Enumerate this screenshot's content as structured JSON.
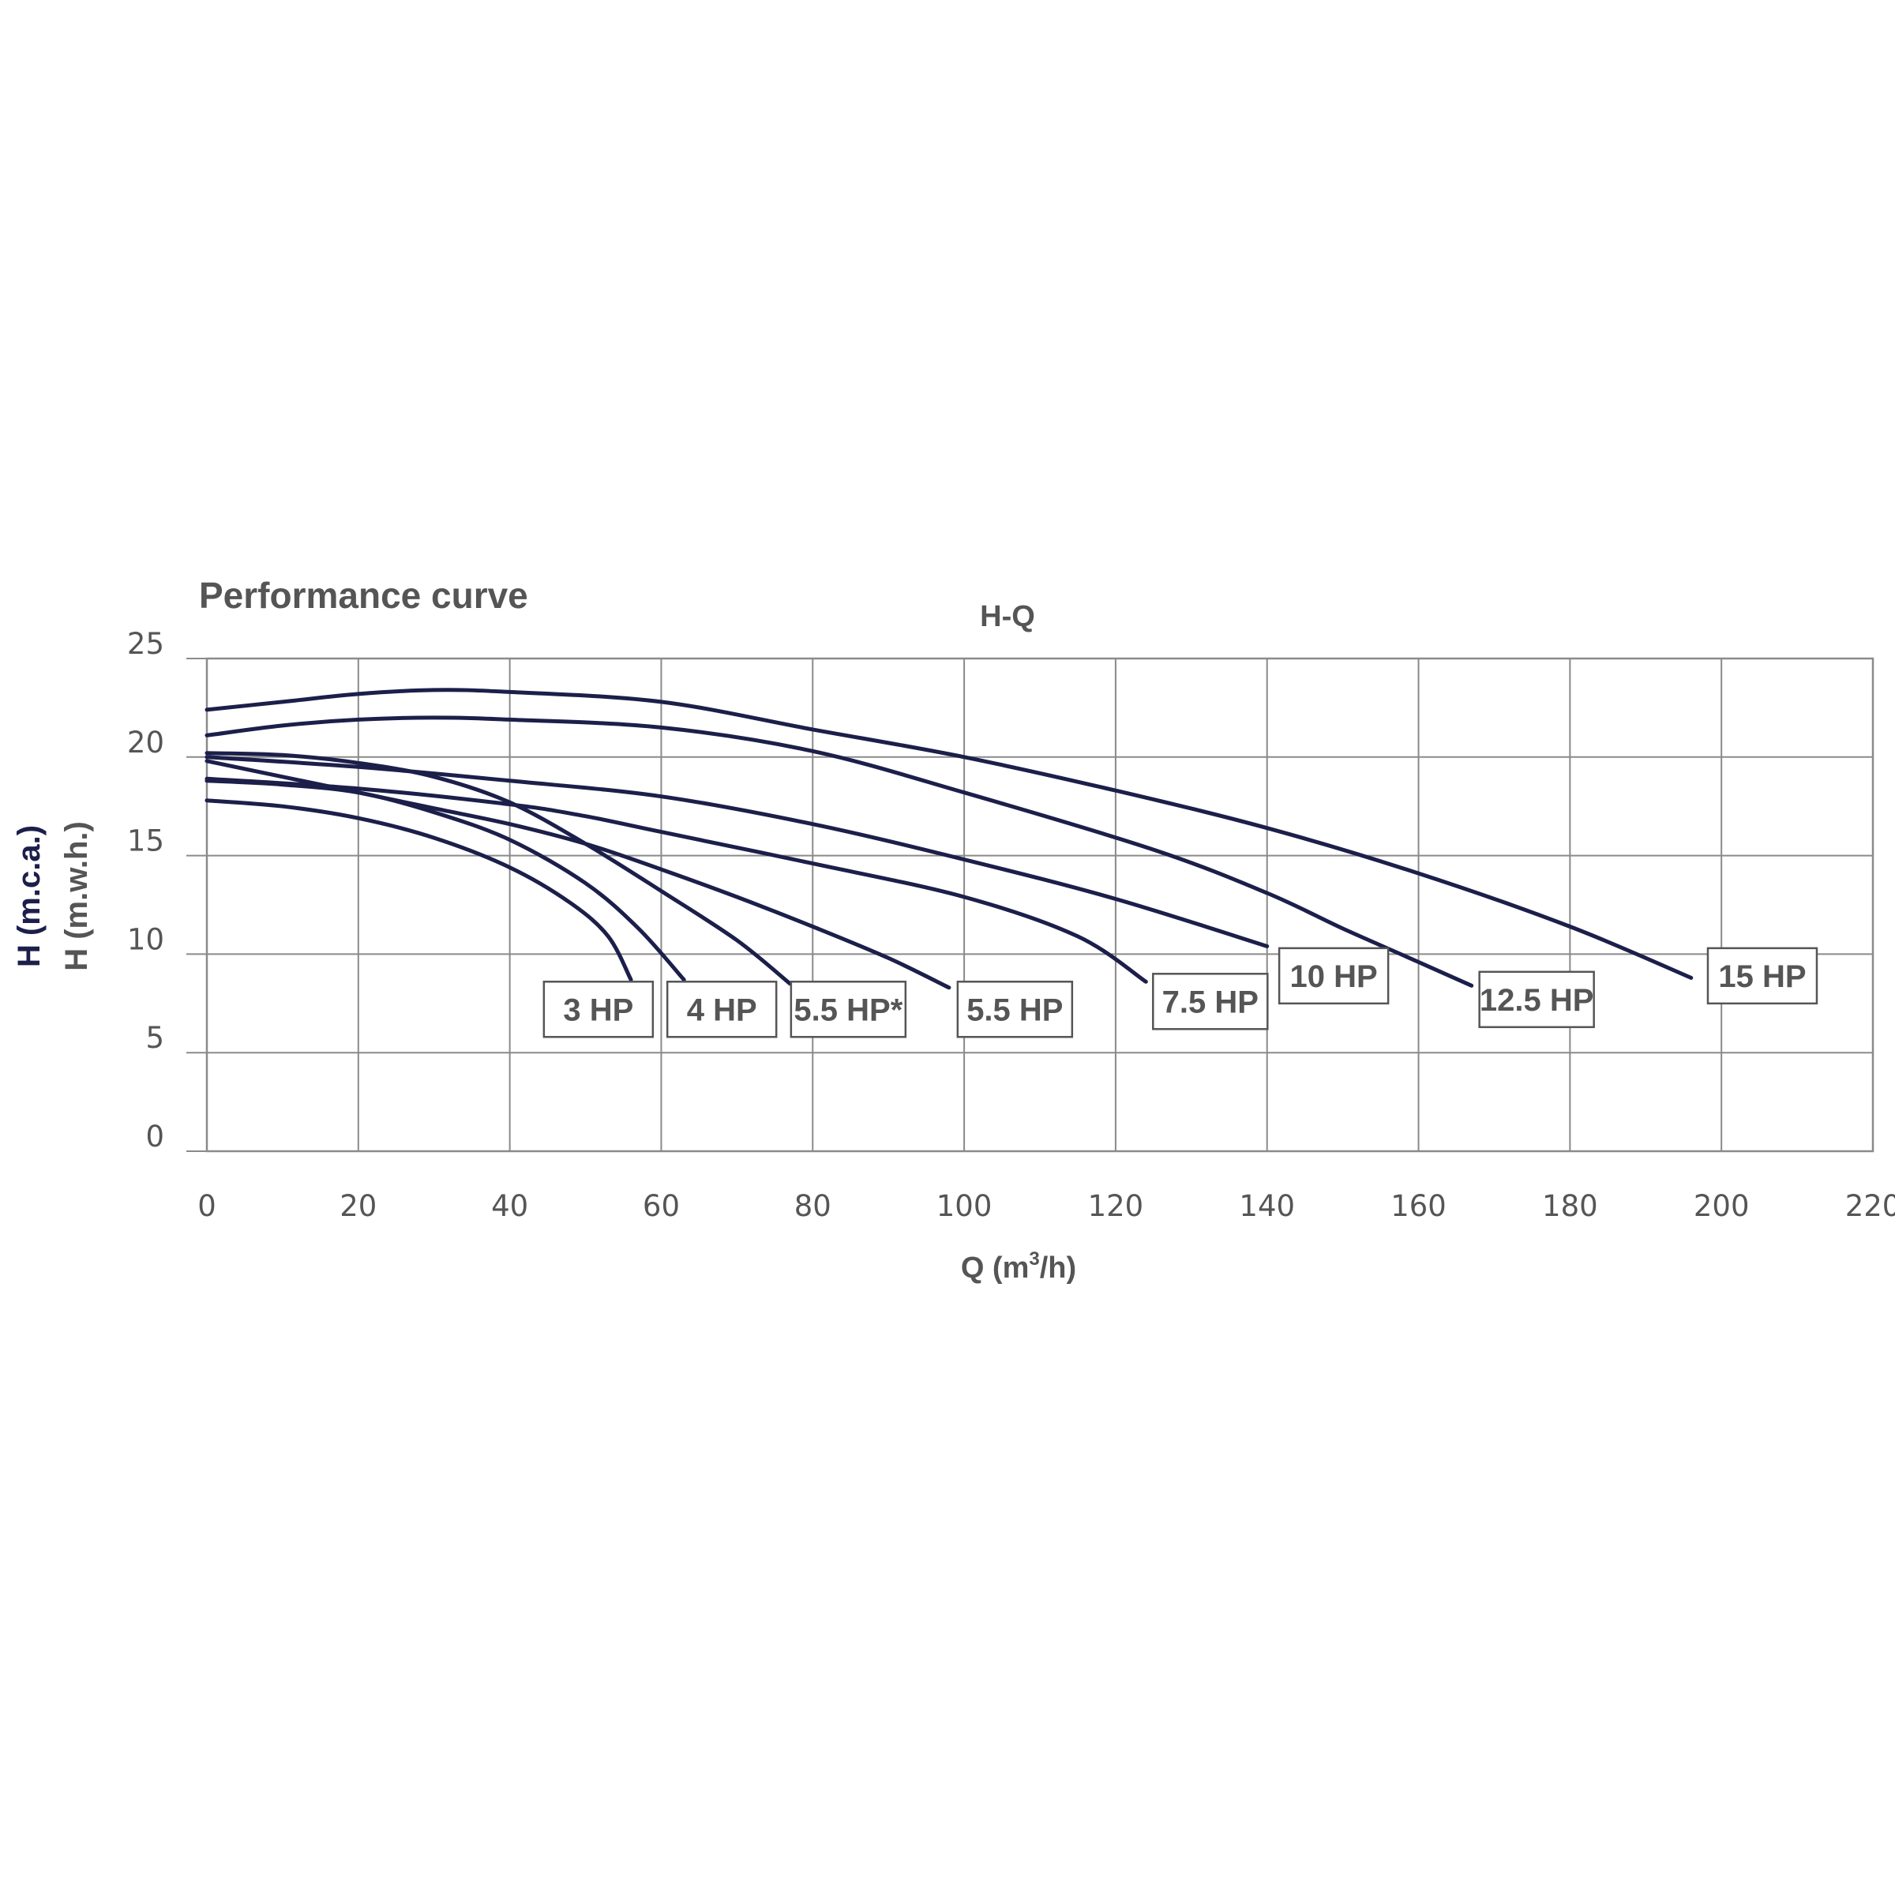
{
  "chart_data": {
    "type": "line",
    "title": "Performance curve",
    "subtitle": "H-Q",
    "xlabel": "Q (m",
    "xlabel_sup": "3",
    "xlabel_end": "/h)",
    "ylabel_1": "H (m.c.a.)",
    "ylabel_2": "H (m.w.h.)",
    "xlim": [
      0,
      220
    ],
    "ylim": [
      0,
      25
    ],
    "x_ticks": [
      0,
      20,
      40,
      60,
      80,
      100,
      120,
      140,
      160,
      180,
      200,
      220
    ],
    "y_ticks": [
      0,
      5,
      10,
      15,
      20,
      25
    ],
    "grid": true,
    "line_color": "#1c1f4a",
    "series": [
      {
        "name": "3 HP",
        "points": [
          [
            0,
            17.8
          ],
          [
            10,
            17.5
          ],
          [
            20,
            16.9
          ],
          [
            30,
            15.9
          ],
          [
            40,
            14.4
          ],
          [
            48,
            12.6
          ],
          [
            53,
            10.9
          ],
          [
            56,
            8.7
          ]
        ]
      },
      {
        "name": "4 HP",
        "points": [
          [
            0,
            18.8
          ],
          [
            10,
            18.6
          ],
          [
            20,
            18.2
          ],
          [
            30,
            17.2
          ],
          [
            40,
            15.8
          ],
          [
            50,
            13.6
          ],
          [
            57,
            11.3
          ],
          [
            63,
            8.7
          ]
        ]
      },
      {
        "name": "5.5 HP*",
        "points": [
          [
            0,
            20.2
          ],
          [
            10,
            20.1
          ],
          [
            20,
            19.7
          ],
          [
            30,
            19.0
          ],
          [
            40,
            17.7
          ],
          [
            50,
            15.6
          ],
          [
            60,
            13.2
          ],
          [
            70,
            10.7
          ],
          [
            77,
            8.5
          ]
        ]
      },
      {
        "name": "5.5 HP",
        "points": [
          [
            0,
            19.8
          ],
          [
            10,
            19.0
          ],
          [
            20,
            18.2
          ],
          [
            30,
            17.4
          ],
          [
            40,
            16.6
          ],
          [
            50,
            15.6
          ],
          [
            60,
            14.3
          ],
          [
            70,
            12.9
          ],
          [
            80,
            11.4
          ],
          [
            90,
            9.8
          ],
          [
            98,
            8.3
          ]
        ]
      },
      {
        "name": "7.5 HP",
        "points": [
          [
            0,
            18.9
          ],
          [
            20,
            18.4
          ],
          [
            40,
            17.6
          ],
          [
            50,
            17.0
          ],
          [
            60,
            16.2
          ],
          [
            80,
            14.6
          ],
          [
            100,
            12.9
          ],
          [
            115,
            10.9
          ],
          [
            124,
            8.6
          ]
        ]
      },
      {
        "name": "10 HP",
        "points": [
          [
            0,
            20.0
          ],
          [
            20,
            19.5
          ],
          [
            40,
            18.8
          ],
          [
            60,
            18.0
          ],
          [
            80,
            16.6
          ],
          [
            100,
            14.8
          ],
          [
            120,
            12.8
          ],
          [
            140,
            10.4
          ]
        ]
      },
      {
        "name": "12.5 HP",
        "points": [
          [
            0,
            21.1
          ],
          [
            10,
            21.6
          ],
          [
            20,
            21.9
          ],
          [
            30,
            22.0
          ],
          [
            40,
            21.9
          ],
          [
            60,
            21.5
          ],
          [
            80,
            20.3
          ],
          [
            100,
            18.2
          ],
          [
            125,
            15.3
          ],
          [
            140,
            13.1
          ],
          [
            150,
            11.3
          ],
          [
            160,
            9.6
          ],
          [
            167,
            8.4
          ]
        ]
      },
      {
        "name": "15 HP",
        "points": [
          [
            0,
            22.4
          ],
          [
            10,
            22.8
          ],
          [
            20,
            23.2
          ],
          [
            30,
            23.4
          ],
          [
            40,
            23.3
          ],
          [
            60,
            22.8
          ],
          [
            80,
            21.4
          ],
          [
            100,
            20.0
          ],
          [
            120,
            18.3
          ],
          [
            140,
            16.4
          ],
          [
            160,
            14.1
          ],
          [
            180,
            11.4
          ],
          [
            196,
            8.8
          ]
        ]
      }
    ],
    "labels": [
      {
        "text": "3 HP",
        "x": 51.7,
        "y": 7.2
      },
      {
        "text": "4 HP",
        "x": 68.0,
        "y": 7.2
      },
      {
        "text": "5.5 HP*",
        "x": 84.7,
        "y": 7.2
      },
      {
        "text": "5.5 HP",
        "x": 106.7,
        "y": 7.2
      },
      {
        "text": "7.5 HP",
        "x": 132.5,
        "y": 7.6
      },
      {
        "text": "10 HP",
        "x": 148.8,
        "y": 8.9
      },
      {
        "text": "12.5 HP",
        "x": 175.6,
        "y": 7.7
      },
      {
        "text": "15 HP",
        "x": 205.4,
        "y": 8.9
      }
    ]
  }
}
